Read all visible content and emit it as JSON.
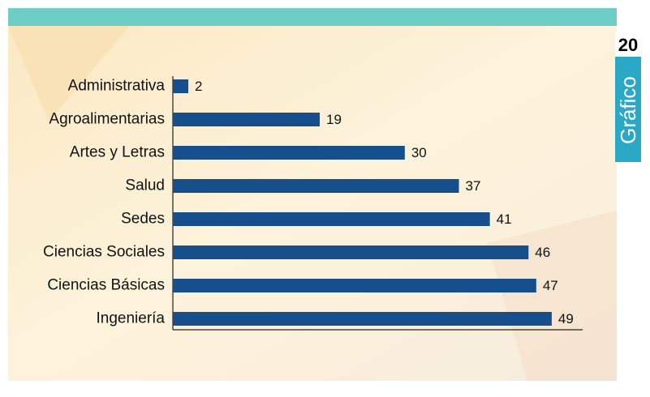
{
  "chart_data": {
    "type": "barh",
    "categories": [
      "Administrativa",
      "Agroalimentarias",
      "Artes y Letras",
      "Salud",
      "Sedes",
      "Ciencias Sociales",
      "Ciencias Básicas",
      "Ingeniería"
    ],
    "values": [
      2,
      19,
      30,
      37,
      41,
      46,
      47,
      49
    ],
    "color": "#174f8d",
    "xlim": [
      0,
      53
    ]
  },
  "badge": {
    "number": "20",
    "label": "Gráfico"
  }
}
